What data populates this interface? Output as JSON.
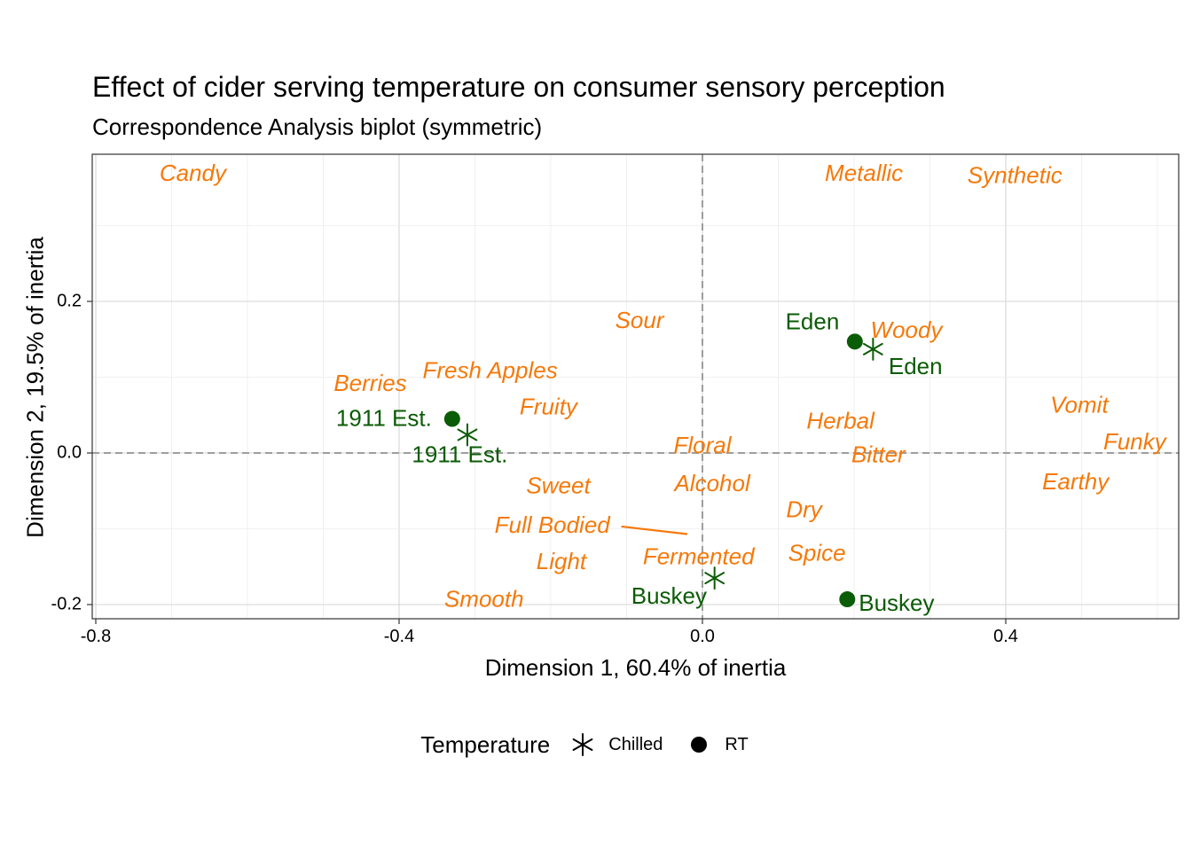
{
  "title": "Effect of cider serving temperature on consumer sensory perception",
  "subtitle": "Correspondence Analysis biplot (symmetric)",
  "chart_data": {
    "type": "scatter",
    "xlabel": "Dimension 1, 60.4% of inertia",
    "ylabel": "Dimension 2, 19.5% of inertia",
    "xlim": [
      -0.8,
      0.625
    ],
    "ylim": [
      -0.22,
      0.39
    ],
    "x_ticks": [
      -0.8,
      -0.4,
      0.0,
      0.4
    ],
    "x_tick_labels": [
      "-0.8",
      "-0.4",
      "0.0",
      "0.4"
    ],
    "y_ticks": [
      -0.2,
      0.0,
      0.2
    ],
    "y_tick_labels": [
      "-0.2",
      "0.0",
      "0.2"
    ],
    "grid": true,
    "reference_lines": {
      "x": 0,
      "y": 0,
      "style": "dashed"
    },
    "colors": {
      "attributes": "#F5790A",
      "ciders": "#0B5C06",
      "grid": "#e0e0e0",
      "ref_line": "#9e9e9e"
    },
    "legend": {
      "title": "Temperature",
      "position": "bottom",
      "entries": [
        {
          "label": "Chilled",
          "shape": "asterisk"
        },
        {
          "label": "RT",
          "shape": "circle"
        }
      ]
    },
    "attributes": [
      {
        "label": "Candy",
        "x": -0.672,
        "y": 0.367
      },
      {
        "label": "Metallic",
        "x": 0.213,
        "y": 0.367
      },
      {
        "label": "Synthetic",
        "x": 0.412,
        "y": 0.364
      },
      {
        "label": "Sour",
        "x": -0.083,
        "y": 0.173
      },
      {
        "label": "Woody",
        "x": 0.269,
        "y": 0.16
      },
      {
        "label": "Fresh Apples",
        "x": -0.28,
        "y": 0.107
      },
      {
        "label": "Berries",
        "x": -0.438,
        "y": 0.09
      },
      {
        "label": "Fruity",
        "x": -0.203,
        "y": 0.059
      },
      {
        "label": "Herbal",
        "x": 0.182,
        "y": 0.04
      },
      {
        "label": "Vomit",
        "x": 0.497,
        "y": 0.061
      },
      {
        "label": "Funky",
        "x": 0.57,
        "y": 0.013
      },
      {
        "label": "Floral",
        "x": 0.0,
        "y": 0.008
      },
      {
        "label": "Bitter",
        "x": 0.232,
        "y": -0.004
      },
      {
        "label": "Sweet",
        "x": -0.19,
        "y": -0.045
      },
      {
        "label": "Alcohol",
        "x": 0.013,
        "y": -0.042
      },
      {
        "label": "Earthy",
        "x": 0.492,
        "y": -0.04
      },
      {
        "label": "Dry",
        "x": 0.134,
        "y": -0.077
      },
      {
        "label": "Full Bodied",
        "x": -0.198,
        "y": -0.097
      },
      {
        "label": "Light",
        "x": -0.186,
        "y": -0.145
      },
      {
        "label": "Fermented",
        "x": -0.005,
        "y": -0.139
      },
      {
        "label": "Spice",
        "x": 0.151,
        "y": -0.134
      },
      {
        "label": "Smooth",
        "x": -0.288,
        "y": -0.195
      }
    ],
    "ciders": [
      {
        "label": "1911 Est.",
        "temperature": "Chilled",
        "x": -0.31,
        "y": 0.024,
        "label_x": -0.32,
        "label_y": -0.004
      },
      {
        "label": "1911 Est.",
        "temperature": "RT",
        "x": -0.33,
        "y": 0.045,
        "label_x": -0.42,
        "label_y": 0.044
      },
      {
        "label": "Eden",
        "temperature": "Chilled",
        "x": 0.225,
        "y": 0.137,
        "label_x": 0.281,
        "label_y": 0.112
      },
      {
        "label": "Eden",
        "temperature": "RT",
        "x": 0.201,
        "y": 0.147,
        "label_x": 0.145,
        "label_y": 0.171
      },
      {
        "label": "Buskey",
        "temperature": "Chilled",
        "x": 0.016,
        "y": -0.165,
        "label_x": -0.044,
        "label_y": -0.191
      },
      {
        "label": "Buskey",
        "temperature": "RT",
        "x": 0.191,
        "y": -0.193,
        "label_x": 0.256,
        "label_y": -0.2
      }
    ],
    "segments": [
      {
        "from": [
          -0.107,
          -0.097
        ],
        "to": [
          -0.02,
          -0.107
        ]
      }
    ]
  }
}
